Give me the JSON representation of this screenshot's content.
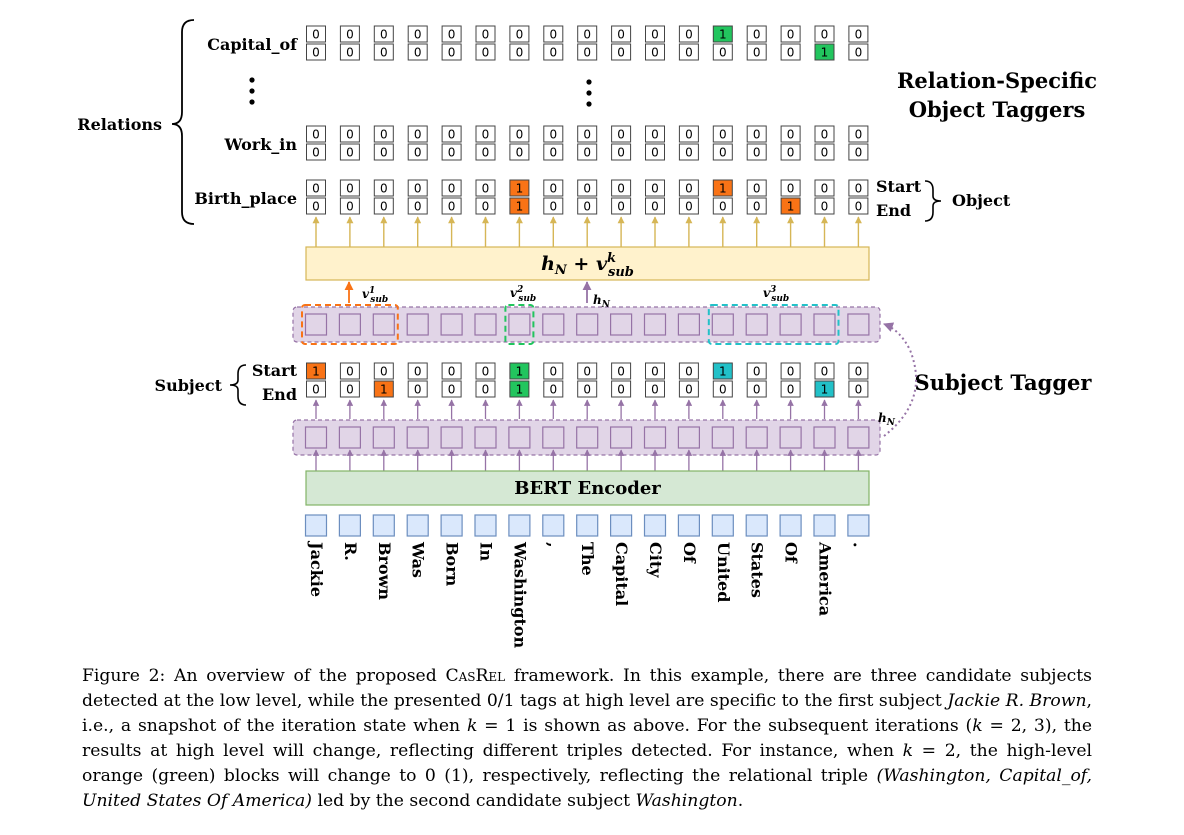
{
  "tokens": [
    "Jackie",
    "R.",
    "Brown",
    "Was",
    "Born",
    "In",
    "Washington",
    ",",
    "The",
    "Capital",
    "City",
    "Of",
    "United",
    "States",
    "Of",
    "America",
    "."
  ],
  "relations": {
    "group_label": "Relations",
    "ellipsis": "⋮",
    "rows": [
      {
        "name": "Capital_of",
        "start": [
          0,
          0,
          0,
          0,
          0,
          0,
          0,
          0,
          0,
          0,
          0,
          0,
          1,
          0,
          0,
          0,
          0
        ],
        "end": [
          0,
          0,
          0,
          0,
          0,
          0,
          0,
          0,
          0,
          0,
          0,
          0,
          0,
          0,
          0,
          1,
          0
        ],
        "color": "#22c55e"
      },
      {
        "name": "Work_in",
        "start": [
          0,
          0,
          0,
          0,
          0,
          0,
          0,
          0,
          0,
          0,
          0,
          0,
          0,
          0,
          0,
          0,
          0
        ],
        "end": [
          0,
          0,
          0,
          0,
          0,
          0,
          0,
          0,
          0,
          0,
          0,
          0,
          0,
          0,
          0,
          0,
          0
        ],
        "color": "#22c55e"
      },
      {
        "name": "Birth_place",
        "start": [
          0,
          0,
          0,
          0,
          0,
          0,
          1,
          0,
          0,
          0,
          0,
          0,
          1,
          0,
          0,
          0,
          0
        ],
        "end": [
          0,
          0,
          0,
          0,
          0,
          0,
          1,
          0,
          0,
          0,
          0,
          0,
          0,
          0,
          1,
          0,
          0
        ],
        "color": "#f97316"
      }
    ]
  },
  "object_side": {
    "start_label": "Start",
    "end_label": "End",
    "brace_label": "Object"
  },
  "relation_taggers_title": [
    "Relation-Specific",
    "Object Taggers"
  ],
  "fusion_label": {
    "base": "h",
    "base_sub": "N",
    "plus": " + ",
    "v": "v",
    "v_sup": "k",
    "v_sub": "sub"
  },
  "subject_taggers_title": "Subject Tagger",
  "subject": {
    "label": "Subject",
    "start_label": "Start",
    "end_label": "End",
    "start": [
      1,
      0,
      0,
      0,
      0,
      0,
      1,
      0,
      0,
      0,
      0,
      0,
      1,
      0,
      0,
      0,
      0
    ],
    "end": [
      0,
      0,
      1,
      0,
      0,
      0,
      1,
      0,
      0,
      0,
      0,
      0,
      0,
      0,
      0,
      1,
      0
    ],
    "start_colors": {
      "0": "#f97316",
      "6": "#22c55e",
      "12": "#22c1c8"
    },
    "end_colors": {
      "2": "#f97316",
      "6": "#22c55e",
      "15": "#22c1c8"
    }
  },
  "v_labels": [
    {
      "sup": "1",
      "sub": "sub",
      "v": "v"
    },
    {
      "sup": "2",
      "sub": "sub",
      "v": "v"
    },
    {
      "sup": "3",
      "sub": "sub",
      "v": "v"
    }
  ],
  "hn_label": {
    "base": "h",
    "sub": "N"
  },
  "bert_label": "BERT Encoder",
  "colors": {
    "bert_fill": "#d5e8d4",
    "bert_stroke": "#82b366",
    "fusion_fill": "#fff2cc",
    "fusion_stroke": "#d6b656",
    "hidden_fill": "#e1d5e7",
    "hidden_stroke": "#9673a6",
    "token_fill": "#dae8fc",
    "token_stroke": "#6c8ebf",
    "orange": "#f97316",
    "green": "#22c55e",
    "cyan": "#22c1c8",
    "arrow_purple": "#9673a6",
    "arrow_gold": "#d6b656"
  },
  "caption": {
    "p1": "Figure 2: An overview of the proposed ",
    "casrel": "CasRel",
    "p2": " framework. In this example, there are three candidate subjects detected at the low level, while the presented 0/1 tags at high level are specific to the first subject ",
    "jrb": "Jackie R. Brown",
    "p3": ", i.e., a snapshot of the iteration state when ",
    "k1": "k",
    "p4": " = 1 is shown as above. For the subsequent iterations (",
    "k2": "k",
    "p5": " = 2, 3), the results at high level will change, reflecting different triples detected. For instance, when ",
    "k3": "k",
    "p6": " = 2, the high-level orange (green) blocks will change to 0 (1), respectively, reflecting the relational triple ",
    "triple": "(Washington, Capital_of, United States Of America)",
    "p7": " led by the second candidate subject ",
    "wash": "Washington",
    "p8": "."
  }
}
